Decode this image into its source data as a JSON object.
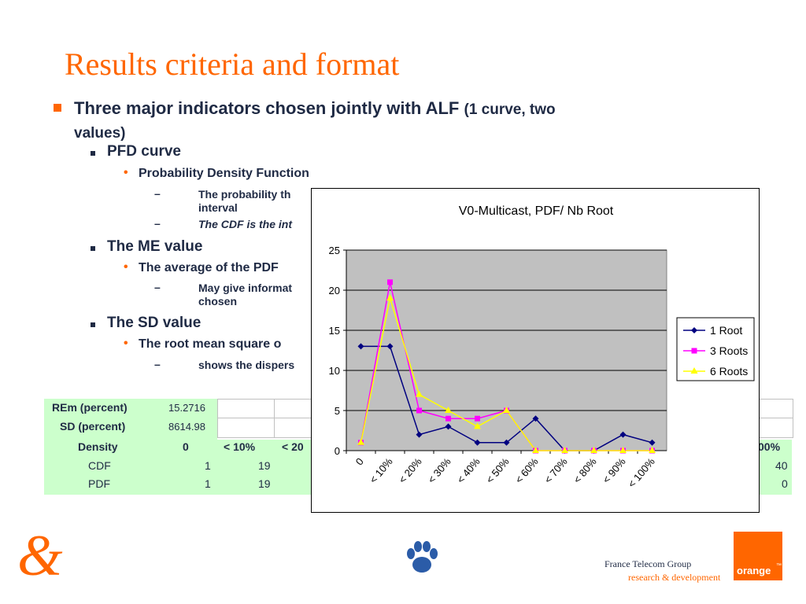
{
  "title": "Results criteria and format",
  "bullet1": {
    "main": "Three major indicators chosen jointly with ALF",
    "paren": "(1 curve, two",
    "line2": "values)"
  },
  "pfd": {
    "label": "PFD curve",
    "sub": "Probability Density Function",
    "d1_line1": "The probability th",
    "d1_line2": "interval",
    "d2": "The CDF is the int"
  },
  "me": {
    "label": "The ME value",
    "sub": "The average of the PDF",
    "d1_line1": "May give informat",
    "d1_line2": "chosen"
  },
  "sd": {
    "label": "The SD value",
    "sub": "The root mean square o",
    "d1": "shows the dispers"
  },
  "table": {
    "rows": [
      {
        "label": "REm (percent)",
        "value": "15.2716"
      },
      {
        "label": "SD (percent)",
        "value": "8614.98"
      },
      {
        "label": "Density",
        "cells": [
          "0",
          "< 10%",
          "< 20"
        ],
        "last": "00%"
      },
      {
        "label": "CDF",
        "cells": [
          "1",
          "19"
        ],
        "last": "40"
      },
      {
        "label": "PDF",
        "cells": [
          "1",
          "19"
        ],
        "last": "0"
      }
    ]
  },
  "chart_data": {
    "type": "line",
    "title": "V0-Multicast, PDF/ Nb Root",
    "categories": [
      "0",
      "< 10%",
      "< 20%",
      "< 30%",
      "< 40%",
      "< 50%",
      "< 60%",
      "< 70%",
      "< 80%",
      "< 90%",
      "< 100%"
    ],
    "ylim": [
      0,
      25
    ],
    "yticks": [
      "0",
      "5",
      "10",
      "15",
      "20",
      "25"
    ],
    "grid": true,
    "legend_position": "right",
    "series": [
      {
        "name": "1 Root",
        "color": "#000080",
        "marker": "diamond",
        "values": [
          13,
          13,
          2,
          3,
          1,
          1,
          4,
          0,
          0,
          2,
          1
        ]
      },
      {
        "name": "3 Roots",
        "color": "#ff00ff",
        "marker": "square",
        "values": [
          1,
          21,
          5,
          4,
          4,
          5,
          0,
          0,
          0,
          0,
          0
        ]
      },
      {
        "name": "6 Roots",
        "color": "#ffff00",
        "marker": "triangle",
        "values": [
          1,
          19,
          7,
          5,
          3,
          5,
          0,
          0,
          0,
          0,
          0
        ]
      }
    ]
  },
  "footer": {
    "line1": "France Telecom Group",
    "line2": "research & development",
    "logo_text": "orange",
    "tm": "™",
    "ampersand": "&"
  },
  "colors": {
    "accent": "#ff6600",
    "text": "#1f2a44",
    "table_green": "#ccffcc",
    "plot_bg": "#c0c0c0"
  }
}
